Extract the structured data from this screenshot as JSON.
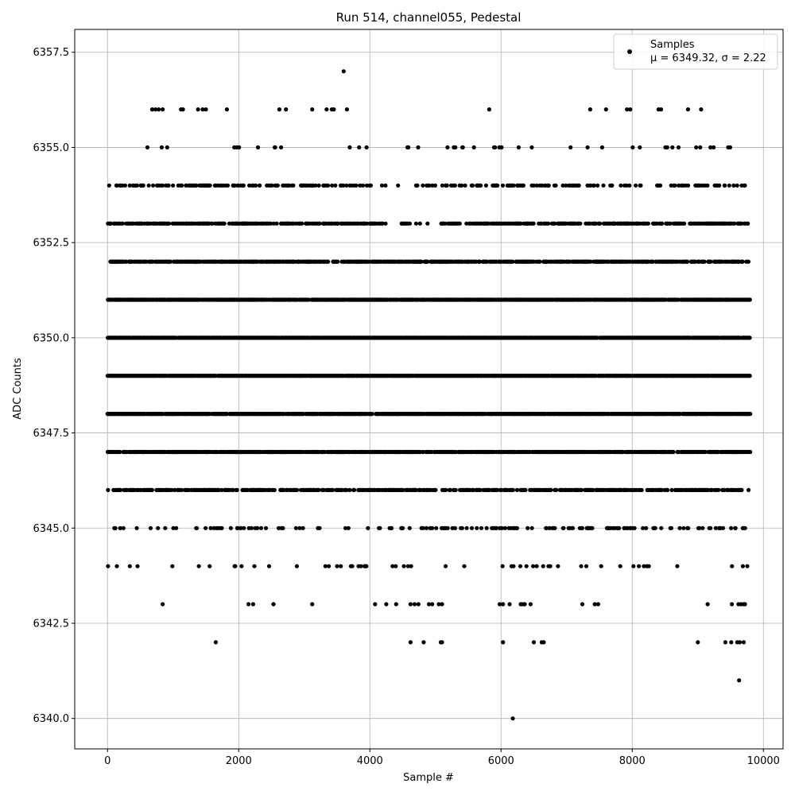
{
  "chart_data": {
    "type": "scatter",
    "title": "Run 514, channel055, Pedestal",
    "xlabel": "Sample #",
    "ylabel": "ADC Counts",
    "xlim": [
      -500,
      10300
    ],
    "ylim": [
      6339.2,
      6358.1
    ],
    "grid": true,
    "legend_position": "top-right",
    "legend": {
      "label": "Samples",
      "stats": "μ = 6349.32, σ = 2.22"
    },
    "mean": 6349.32,
    "sigma": 2.22,
    "x_ticks": [
      0,
      2000,
      4000,
      6000,
      8000,
      10000
    ],
    "x_tick_labels": [
      "0",
      "2000",
      "4000",
      "6000",
      "8000",
      "10000"
    ],
    "y_ticks": [
      6340.0,
      6342.5,
      6345.0,
      6347.5,
      6350.0,
      6352.5,
      6355.0,
      6357.5
    ],
    "y_tick_labels": [
      "6340.0",
      "6342.5",
      "6345.0",
      "6347.5",
      "6350.0",
      "6352.5",
      "6355.0",
      "6357.5"
    ],
    "sample_count": 9800,
    "marker_color": "#000000",
    "series": [
      {
        "name": "Samples",
        "levels": [
          {
            "y": 6349,
            "density": 0.95
          },
          {
            "y": 6350,
            "density": 0.92
          },
          {
            "y": 6348,
            "density": 0.85
          },
          {
            "y": 6351,
            "density": 0.8
          },
          {
            "y": 6347,
            "density": 0.72
          },
          {
            "y": 6352,
            "density": 0.62
          },
          {
            "y": 6353,
            "density": 0.48
          },
          {
            "y": 6346,
            "density": 0.42
          },
          {
            "y": 6354,
            "density": 0.26
          },
          {
            "y": 6345,
            "density": 0.18
          },
          {
            "y": 6344,
            "density": 0.05
          },
          {
            "y": 6355,
            "density": 0.04
          }
        ],
        "points": [
          [
            3600,
            6357
          ],
          [
            680,
            6356
          ],
          [
            730,
            6356
          ],
          [
            780,
            6356
          ],
          [
            840,
            6356
          ],
          [
            1120,
            6356
          ],
          [
            1150,
            6356
          ],
          [
            1380,
            6356
          ],
          [
            1450,
            6356
          ],
          [
            1500,
            6356
          ],
          [
            1820,
            6356
          ],
          [
            2620,
            6356
          ],
          [
            2720,
            6356
          ],
          [
            3120,
            6356
          ],
          [
            3340,
            6356
          ],
          [
            3420,
            6356
          ],
          [
            3450,
            6356
          ],
          [
            3650,
            6356
          ],
          [
            5820,
            6356
          ],
          [
            7360,
            6356
          ],
          [
            7600,
            6356
          ],
          [
            7920,
            6356
          ],
          [
            7970,
            6356
          ],
          [
            8400,
            6356
          ],
          [
            8440,
            6356
          ],
          [
            8850,
            6356
          ],
          [
            9050,
            6356
          ],
          [
            840,
            6343
          ],
          [
            2150,
            6343
          ],
          [
            2220,
            6343
          ],
          [
            2530,
            6343
          ],
          [
            3120,
            6343
          ],
          [
            4080,
            6343
          ],
          [
            4250,
            6343
          ],
          [
            4400,
            6343
          ],
          [
            4620,
            6343
          ],
          [
            4680,
            6343
          ],
          [
            4740,
            6343
          ],
          [
            4900,
            6343
          ],
          [
            4950,
            6343
          ],
          [
            5050,
            6343
          ],
          [
            5100,
            6343
          ],
          [
            5980,
            6343
          ],
          [
            6030,
            6343
          ],
          [
            6130,
            6343
          ],
          [
            6300,
            6343
          ],
          [
            6330,
            6343
          ],
          [
            6360,
            6343
          ],
          [
            6450,
            6343
          ],
          [
            7240,
            6343
          ],
          [
            7430,
            6343
          ],
          [
            7480,
            6343
          ],
          [
            9150,
            6343
          ],
          [
            9520,
            6343
          ],
          [
            9620,
            6343
          ],
          [
            9660,
            6343
          ],
          [
            9700,
            6343
          ],
          [
            9720,
            6343
          ],
          [
            1650,
            6342
          ],
          [
            4620,
            6342
          ],
          [
            4820,
            6342
          ],
          [
            5080,
            6342
          ],
          [
            5100,
            6342
          ],
          [
            6030,
            6342
          ],
          [
            6500,
            6342
          ],
          [
            6620,
            6342
          ],
          [
            6650,
            6342
          ],
          [
            9000,
            6342
          ],
          [
            9420,
            6342
          ],
          [
            9510,
            6342
          ],
          [
            9600,
            6342
          ],
          [
            9640,
            6342
          ],
          [
            9700,
            6342
          ],
          [
            9630,
            6341
          ],
          [
            6180,
            6340
          ]
        ]
      }
    ]
  }
}
